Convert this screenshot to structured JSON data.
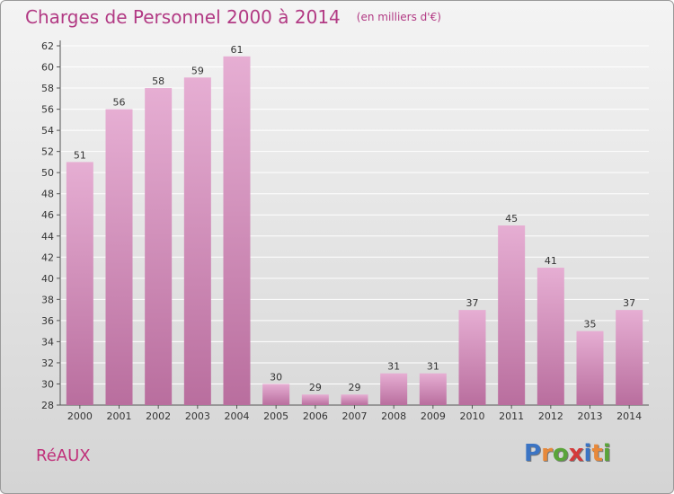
{
  "title": "Charges de Personnel 2000 à 2014",
  "unit_note": "(en milliers d'€)",
  "commune": "RéAUX",
  "logo": {
    "text": "Proxiti",
    "letter_colors": [
      "#3b74c4",
      "#e8893a",
      "#5aa43a",
      "#d33a3a",
      "#3b74c4",
      "#e8893a",
      "#5aa43a"
    ]
  },
  "colors": {
    "bar_light": "#e6aed3",
    "bar_dark": "#b96e9e",
    "grid": "#ffffff",
    "title": "#b23a84"
  },
  "chart_data": {
    "type": "bar",
    "title": "Charges de Personnel 2000 à 2014",
    "xlabel": "",
    "ylabel": "",
    "categories": [
      "2000",
      "2001",
      "2002",
      "2003",
      "2004",
      "2005",
      "2006",
      "2007",
      "2008",
      "2009",
      "2010",
      "2011",
      "2012",
      "2013",
      "2014"
    ],
    "values": [
      51,
      56,
      58,
      59,
      61,
      30,
      29,
      29,
      31,
      31,
      37,
      45,
      41,
      35,
      37
    ],
    "ylim": [
      28,
      62
    ],
    "yticks": [
      28,
      30,
      32,
      34,
      36,
      38,
      40,
      42,
      44,
      46,
      48,
      50,
      52,
      54,
      56,
      58,
      60,
      62
    ],
    "grid": true,
    "show_values": true
  }
}
